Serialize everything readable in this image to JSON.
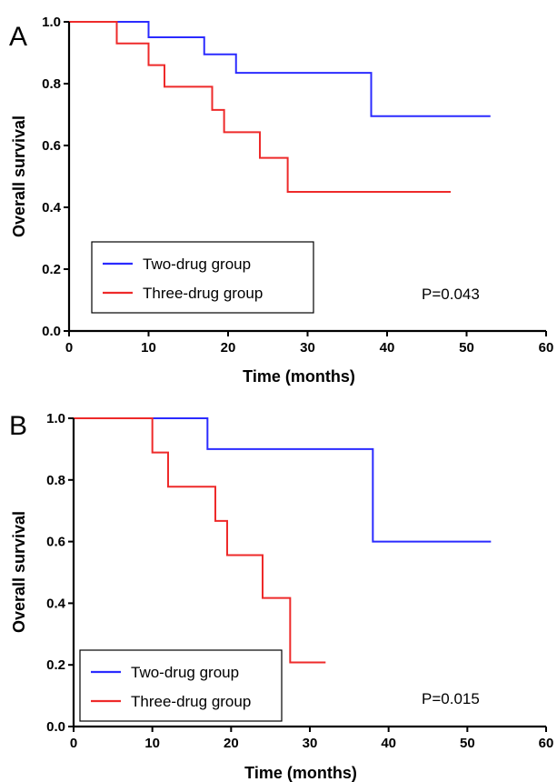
{
  "chart_data": [
    {
      "type": "line",
      "panel_label": "A",
      "xlabel": "Time (months)",
      "ylabel": "Overall survival",
      "xlim": [
        0,
        60
      ],
      "ylim": [
        0,
        1.0
      ],
      "xticks": [
        "0",
        "10",
        "20",
        "30",
        "40",
        "50",
        "60"
      ],
      "yticks": [
        "0.0",
        "0.2",
        "0.4",
        "0.6",
        "0.8",
        "1.0"
      ],
      "legend_position": "bottom-left",
      "annotation": "P=0.043",
      "series": [
        {
          "name": "Two-drug group",
          "color": "#2b2bff",
          "step": true,
          "points": [
            [
              0,
              1.0
            ],
            [
              10,
              0.95
            ],
            [
              17,
              0.895
            ],
            [
              21,
              0.835
            ],
            [
              38,
              0.695
            ],
            [
              53,
              0.695
            ]
          ]
        },
        {
          "name": "Three-drug group",
          "color": "#ee2a2a",
          "step": true,
          "points": [
            [
              0,
              1.0
            ],
            [
              6,
              0.93
            ],
            [
              10,
              0.86
            ],
            [
              12,
              0.79
            ],
            [
              18,
              0.715
            ],
            [
              19.5,
              0.643
            ],
            [
              24,
              0.56
            ],
            [
              27.5,
              0.45
            ],
            [
              48,
              0.45
            ]
          ]
        }
      ]
    },
    {
      "type": "line",
      "panel_label": "B",
      "xlabel": "Time (months)",
      "ylabel": "Overall survival",
      "xlim": [
        0,
        60
      ],
      "ylim": [
        0,
        1.0
      ],
      "xticks": [
        "0",
        "10",
        "20",
        "30",
        "40",
        "50",
        "60"
      ],
      "yticks": [
        "0.0",
        "0.2",
        "0.4",
        "0.6",
        "0.8",
        "1.0"
      ],
      "legend_position": "bottom-left",
      "annotation": "P=0.015",
      "series": [
        {
          "name": "Two-drug group",
          "color": "#2b2bff",
          "step": true,
          "points": [
            [
              0,
              1.0
            ],
            [
              17,
              0.9
            ],
            [
              38,
              0.6
            ],
            [
              53,
              0.6
            ]
          ]
        },
        {
          "name": "Three-drug group",
          "color": "#ee2a2a",
          "step": true,
          "points": [
            [
              0,
              1.0
            ],
            [
              10,
              0.889
            ],
            [
              12,
              0.778
            ],
            [
              18,
              0.667
            ],
            [
              19.5,
              0.556
            ],
            [
              24,
              0.417
            ],
            [
              27.5,
              0.208
            ],
            [
              32,
              0.208
            ]
          ]
        }
      ]
    }
  ]
}
